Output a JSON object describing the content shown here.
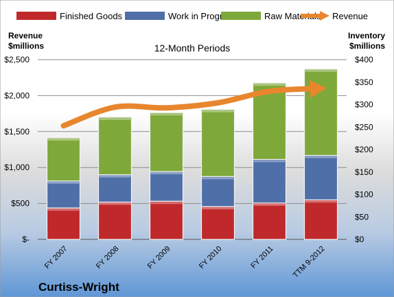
{
  "chart_data": {
    "type": "bar",
    "stacked": true,
    "title": "12-Month Periods",
    "company": "Curtiss-Wright",
    "left_axis": {
      "label_line1": "Revenue",
      "label_line2": "$millions",
      "ylim": [
        0,
        2500
      ],
      "ticks": [
        {
          "v": 0,
          "t": "$-"
        },
        {
          "v": 500,
          "t": "$500"
        },
        {
          "v": 1000,
          "t": "$1,000"
        },
        {
          "v": 1500,
          "t": "$1,500"
        },
        {
          "v": 2000,
          "t": "$2,000"
        },
        {
          "v": 2500,
          "t": "$2,500"
        }
      ]
    },
    "right_axis": {
      "label_line1": "Inventory",
      "label_line2": "$millions",
      "ylim": [
        0,
        400
      ],
      "ticks": [
        {
          "v": 0,
          "t": "$0"
        },
        {
          "v": 50,
          "t": "$50"
        },
        {
          "v": 100,
          "t": "$100"
        },
        {
          "v": 150,
          "t": "$150"
        },
        {
          "v": 200,
          "t": "$200"
        },
        {
          "v": 250,
          "t": "$250"
        },
        {
          "v": 300,
          "t": "$300"
        },
        {
          "v": 350,
          "t": "$350"
        },
        {
          "v": 400,
          "t": "$400"
        }
      ]
    },
    "categories": [
      "FY 2007",
      "FY 2008",
      "FY 2009",
      "FY 2010",
      "FY 2011",
      "TTM 9-2012"
    ],
    "series": [
      {
        "name": "Finished Goods",
        "axis": "right",
        "color": "#C0292B",
        "values": [
          70,
          83,
          85,
          73,
          81,
          88
        ]
      },
      {
        "name": "Work in Progress",
        "axis": "right",
        "color": "#4F6FA8",
        "values": [
          60,
          61,
          66,
          67,
          97,
          99
        ]
      },
      {
        "name": "Raw Materials",
        "axis": "right",
        "color": "#7FA83A",
        "values": [
          96,
          128,
          131,
          149,
          170,
          192
        ]
      },
      {
        "name": "Revenue",
        "axis": "left",
        "type": "line",
        "color": "#E8862E",
        "values": [
          1580,
          1840,
          1830,
          1900,
          2060,
          2100
        ]
      }
    ],
    "grid": true,
    "legend": "top"
  }
}
